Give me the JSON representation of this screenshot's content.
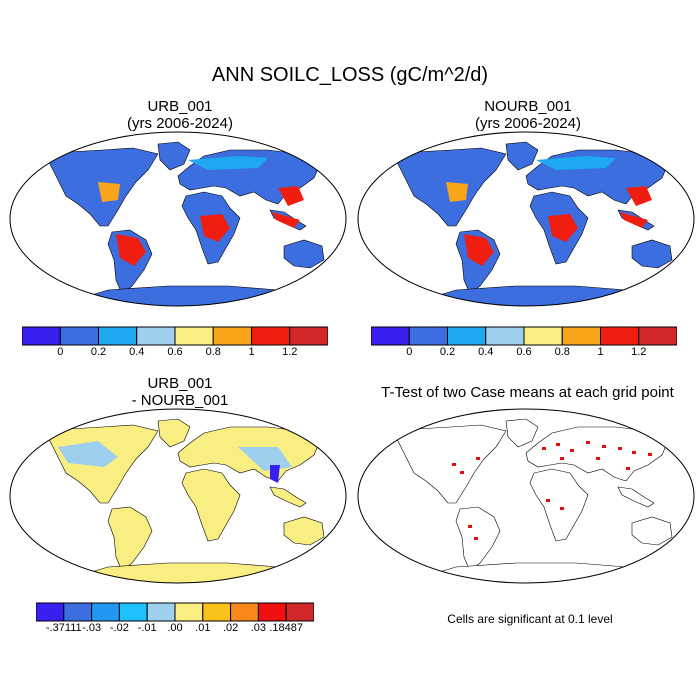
{
  "title": "ANN SOILC_LOSS (gC/m^2/d)",
  "panels": {
    "urb": {
      "title": "URB_001",
      "subtitle": "(yrs 2006-2024)"
    },
    "nourb": {
      "title": "NOURB_001",
      "subtitle": "(yrs 2006-2024)"
    },
    "diff": {
      "title": "URB_001",
      "subtitle": "- NOURB_001"
    },
    "ttest": {
      "title": "T-Test of two Case means at each grid point",
      "note": "Cells are significant at 0.1 level"
    }
  },
  "colorbar_main": {
    "colors": [
      "#3a20f0",
      "#3d6ee0",
      "#1ea8f0",
      "#9ecfee",
      "#f9ee82",
      "#f9a51a",
      "#f01e10",
      "#d02828"
    ],
    "labels": [
      "0",
      "0.2",
      "0.4",
      "0.6",
      "0.8",
      "1",
      "1.2"
    ]
  },
  "colorbar_diff": {
    "colors": [
      "#3a20f0",
      "#3d6ee0",
      "#2196f3",
      "#1ec0ff",
      "#9ecfee",
      "#f9ee82",
      "#f9c21a",
      "#f98a1a",
      "#f01010",
      "#d02828"
    ],
    "labels": [
      "-.37111",
      "-.03",
      "-.02",
      "-.01",
      ".00",
      ".01",
      ".02",
      ".03",
      ".18487"
    ]
  },
  "colors": {
    "ocean": "#ffffff",
    "land_low": "#3d6ee0",
    "land_mid": "#1ea8f0",
    "land_high": "#f01e10",
    "diff_land": "#f9ee82",
    "sig": "#e01010"
  }
}
